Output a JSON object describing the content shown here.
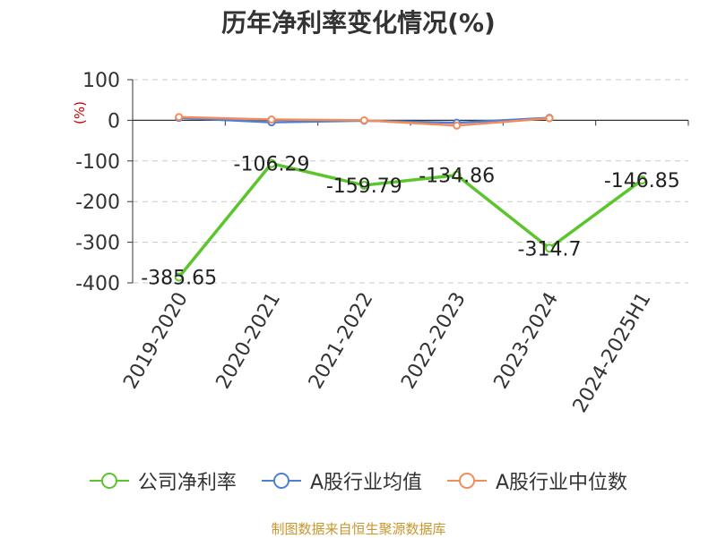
{
  "chart_data": {
    "type": "line",
    "title": "历年净利率变化情况(%)",
    "ylabel": "(%)",
    "categories": [
      "2019-2020",
      "2020-2021",
      "2021-2022",
      "2022-2023",
      "2023-2024",
      "2024-2025H1"
    ],
    "ylim": [
      -400,
      100
    ],
    "yticks": [
      100,
      0,
      -100,
      -200,
      -300,
      -400
    ],
    "ytick_labels": [
      "100",
      "0",
      "-100",
      "-200",
      "-300",
      "-400"
    ],
    "grid": true,
    "legend_position": "bottom",
    "series": [
      {
        "name": "公司净利率",
        "color": "#5cc52e",
        "values": [
          -385.65,
          -106.29,
          -159.79,
          -134.86,
          -314.7,
          -146.85
        ],
        "data_labels": [
          "-385.65",
          "-106.29",
          "-159.79",
          "-134.86",
          "-314.7",
          "-146.85"
        ]
      },
      {
        "name": "A股行业均值",
        "color": "#4e7fd6",
        "values": [
          6,
          -5,
          -1,
          -6,
          6,
          null
        ]
      },
      {
        "name": "A股行业中位数",
        "color": "#f28c5a",
        "values": [
          8,
          2,
          0,
          -13,
          5,
          null
        ]
      }
    ]
  },
  "source_note": "制图数据来自恒生聚源数据库"
}
